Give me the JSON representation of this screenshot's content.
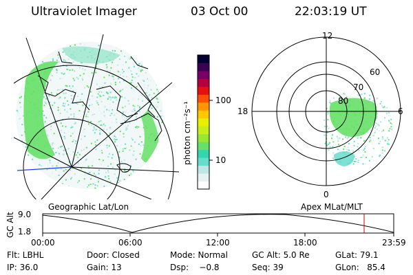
{
  "header": {
    "instrument": "Ultraviolet Imager",
    "date": "03 Oct 00",
    "time": "22:03:19 UT"
  },
  "colorbar": {
    "unit_label": "photon cm⁻²s⁻¹",
    "tick_100": "100",
    "tick_10": "10",
    "colors": [
      "#ffffff",
      "#e6f2f2",
      "#bfe6e6",
      "#66dccc",
      "#33d6b0",
      "#66e066",
      "#99e633",
      "#c8ee1a",
      "#e6f000",
      "#ffc800",
      "#ff9600",
      "#ff5000",
      "#e61010",
      "#b4003c",
      "#780064",
      "#3c0050",
      "#000032"
    ]
  },
  "geo_map": {
    "label": "Geographic Lat/Lon"
  },
  "polar_plot": {
    "label": "Apex MLat/MLT",
    "mlt_labels": {
      "top": "12",
      "left": "18",
      "right": "6",
      "bottom": "0"
    },
    "lat_labels": [
      "60",
      "70",
      "80"
    ]
  },
  "altitude_plot": {
    "ylabel": "GC Alt",
    "y_ticks": [
      "9.0",
      "1.8"
    ],
    "x_ticks": [
      "00:00",
      "06:00",
      "12:00",
      "18:00",
      "23:59"
    ],
    "marker_color": "#cc0000"
  },
  "info": {
    "filter": "Flt: LBHL",
    "door": "Door: Closed",
    "mode": "Mode: Normal",
    "gc_alt": "GC Alt: 5.0 Re",
    "glat": "GLat:   79.1",
    "ip": "IP: 36.0",
    "gain": "Gain: 13",
    "dsp": "Dsp:    −0.8",
    "seq": "Seq: 39",
    "glon": "GLon:   85.4"
  }
}
